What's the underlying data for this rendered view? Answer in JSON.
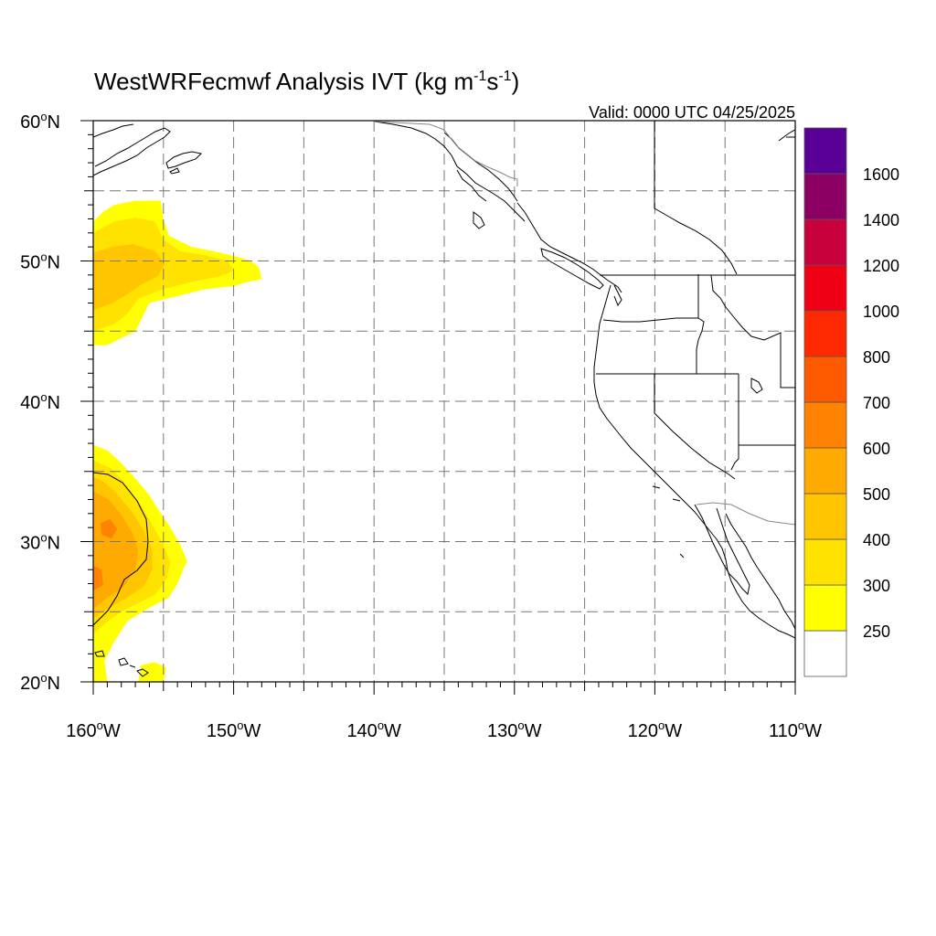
{
  "title": {
    "main": "WestWRFecmwf Analysis IVT (kg m",
    "sup1": "-1",
    "mid": "s",
    "sup2": "-1",
    "end": ")"
  },
  "valid": "Valid: 0000 UTC 04/25/2025",
  "lon_ticks": [
    {
      "value": -160,
      "num": "160",
      "deg": "o",
      "hemi": "W"
    },
    {
      "value": -150,
      "num": "150",
      "deg": "o",
      "hemi": "W"
    },
    {
      "value": -140,
      "num": "140",
      "deg": "o",
      "hemi": "W"
    },
    {
      "value": -130,
      "num": "130",
      "deg": "o",
      "hemi": "W"
    },
    {
      "value": -120,
      "num": "120",
      "deg": "o",
      "hemi": "W"
    },
    {
      "value": -110,
      "num": "110",
      "deg": "o",
      "hemi": "W"
    }
  ],
  "lat_ticks": [
    {
      "value": 60,
      "num": "60",
      "deg": "o",
      "hemi": "N"
    },
    {
      "value": 50,
      "num": "50",
      "deg": "o",
      "hemi": "N"
    },
    {
      "value": 40,
      "num": "40",
      "deg": "o",
      "hemi": "N"
    },
    {
      "value": 30,
      "num": "30",
      "deg": "o",
      "hemi": "N"
    },
    {
      "value": 20,
      "num": "20",
      "deg": "o",
      "hemi": "N"
    }
  ],
  "extent": {
    "lon_min": -160,
    "lon_max": -110,
    "lat_min": 20,
    "lat_max": 60
  },
  "colorbar": {
    "levels": [
      {
        "color": "#ffffff",
        "label": ""
      },
      {
        "color": "#ffff00",
        "label": "250"
      },
      {
        "color": "#ffe200",
        "label": "300"
      },
      {
        "color": "#ffc600",
        "label": "400"
      },
      {
        "color": "#ffaa00",
        "label": "500"
      },
      {
        "color": "#ff8200",
        "label": "600"
      },
      {
        "color": "#ff5a00",
        "label": "700"
      },
      {
        "color": "#ff2800",
        "label": "800"
      },
      {
        "color": "#f00014",
        "label": "1000"
      },
      {
        "color": "#c8003c",
        "label": "1200"
      },
      {
        "color": "#8c0064",
        "label": "1400"
      },
      {
        "color": "#5a0096",
        "label": "1600"
      }
    ]
  },
  "ivt_fields": [
    {
      "name": "northern-plume",
      "layers": [
        {
          "level": 250,
          "color": "#ffff00",
          "poly": [
            [
              -160,
              44
            ],
            [
              -159,
              44
            ],
            [
              -158,
              44.5
            ],
            [
              -157,
              45
            ],
            [
              -156.5,
              46
            ],
            [
              -156,
              47
            ],
            [
              -154,
              47.5
            ],
            [
              -152,
              48
            ],
            [
              -150,
              48.2
            ],
            [
              -149,
              48.5
            ],
            [
              -148,
              48.7
            ],
            [
              -148.2,
              49.6
            ],
            [
              -149,
              50.1
            ],
            [
              -151,
              50.6
            ],
            [
              -153,
              51
            ],
            [
              -154.6,
              51.8
            ],
            [
              -155,
              53
            ],
            [
              -155.2,
              54.3
            ],
            [
              -157,
              54.3
            ],
            [
              -158.5,
              54
            ],
            [
              -159.3,
              53.5
            ],
            [
              -160,
              52.8
            ]
          ]
        },
        {
          "level": 300,
          "color": "#ffe200",
          "poly": [
            [
              -160,
              45
            ],
            [
              -158.5,
              45.5
            ],
            [
              -157.5,
              46.3
            ],
            [
              -156.8,
              47.3
            ],
            [
              -155,
              48
            ],
            [
              -153,
              48.5
            ],
            [
              -151,
              48.9
            ],
            [
              -150,
              49.3
            ],
            [
              -150.4,
              50
            ],
            [
              -152,
              50.4
            ],
            [
              -153.8,
              50.7
            ],
            [
              -155,
              51.5
            ],
            [
              -155.6,
              52.8
            ],
            [
              -157,
              53.1
            ],
            [
              -158.5,
              52.8
            ],
            [
              -160,
              52
            ]
          ]
        },
        {
          "level": 400,
          "color": "#ffc600",
          "poly": [
            [
              -160,
              46.5
            ],
            [
              -158.6,
              47
            ],
            [
              -157.6,
              47.6
            ],
            [
              -156.6,
              48.3
            ],
            [
              -155.4,
              48.9
            ],
            [
              -154.9,
              49.8
            ],
            [
              -155.6,
              50.7
            ],
            [
              -157.2,
              51.2
            ],
            [
              -158.7,
              51
            ],
            [
              -160,
              50.6
            ]
          ]
        }
      ]
    },
    {
      "name": "southern-plume",
      "layers": [
        {
          "level": 250,
          "color": "#ffff00",
          "poly": [
            [
              -160,
              20
            ],
            [
              -159,
              20
            ],
            [
              -159.2,
              21.5
            ],
            [
              -158.6,
              22.7
            ],
            [
              -157.6,
              24.3
            ],
            [
              -156.5,
              25
            ],
            [
              -155.6,
              25.5
            ],
            [
              -154.6,
              26
            ],
            [
              -154,
              27
            ],
            [
              -153.6,
              28
            ],
            [
              -153.3,
              28.6
            ],
            [
              -153.8,
              29.8
            ],
            [
              -154.5,
              31
            ],
            [
              -155.3,
              32.2
            ],
            [
              -156,
              33.3
            ],
            [
              -157,
              34.5
            ],
            [
              -158,
              35.6
            ],
            [
              -159,
              36.5
            ],
            [
              -160,
              36.9
            ]
          ]
        },
        {
          "level": 300,
          "color": "#ffe200",
          "poly": [
            [
              -160,
              23.4
            ],
            [
              -159,
              24.3
            ],
            [
              -158,
              25
            ],
            [
              -156.8,
              25.6
            ],
            [
              -155.6,
              26.2
            ],
            [
              -154.8,
              27.3
            ],
            [
              -154.5,
              28.5
            ],
            [
              -155,
              29.8
            ],
            [
              -155.8,
              31.2
            ],
            [
              -156.6,
              32.6
            ],
            [
              -157.6,
              34
            ],
            [
              -158.7,
              35.2
            ],
            [
              -160,
              35.8
            ]
          ]
        },
        {
          "level": 400,
          "color": "#ffc600",
          "poly": [
            [
              -160,
              24.5
            ],
            [
              -159,
              25.2
            ],
            [
              -157.6,
              26
            ],
            [
              -156.4,
              26.8
            ],
            [
              -155.8,
              28
            ],
            [
              -155.8,
              29.4
            ],
            [
              -156.4,
              30.8
            ],
            [
              -157.3,
              32.2
            ],
            [
              -158.4,
              33.5
            ],
            [
              -159.3,
              34.3
            ],
            [
              -160,
              34.6
            ]
          ]
        },
        {
          "level": 500,
          "color": "#ffaa00",
          "poly": [
            [
              -160,
              25.2
            ],
            [
              -159,
              26
            ],
            [
              -157.8,
              26.8
            ],
            [
              -157,
              28
            ],
            [
              -156.8,
              29.3
            ],
            [
              -157.2,
              30.6
            ],
            [
              -158,
              31.9
            ],
            [
              -158.9,
              33
            ],
            [
              -160,
              33.6
            ]
          ]
        },
        {
          "level": 600,
          "color": "#ff8200",
          "poly": [
            [
              -159.4,
              30.5
            ],
            [
              -158.7,
              30.2
            ],
            [
              -158.3,
              30.9
            ],
            [
              -158.8,
              31.6
            ],
            [
              -159.5,
              31.3
            ]
          ]
        },
        {
          "level": 600,
          "color": "#ff8200",
          "poly": [
            [
              -160,
              26.5
            ],
            [
              -159.3,
              26.9
            ],
            [
              -159.4,
              28
            ],
            [
              -160,
              28.3
            ]
          ]
        }
      ]
    },
    {
      "name": "hawaii-patch",
      "layers": [
        {
          "level": 250,
          "color": "#ffff00",
          "poly": [
            [
              -156.8,
              20
            ],
            [
              -155,
              20
            ],
            [
              -154.8,
              21
            ],
            [
              -155.6,
              21.4
            ],
            [
              -156.6,
              21.2
            ]
          ]
        }
      ]
    }
  ]
}
